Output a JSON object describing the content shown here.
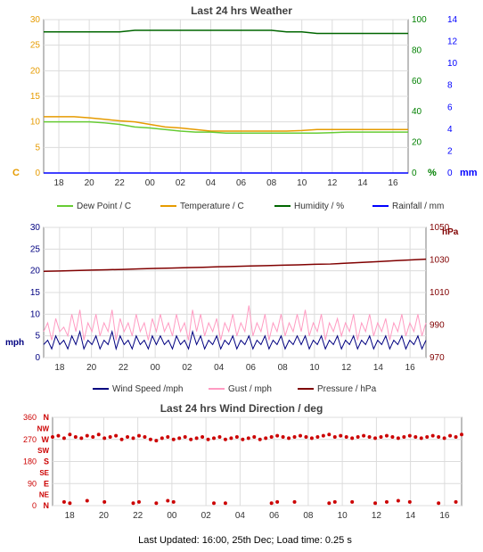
{
  "chart1": {
    "title": "Last 24 hrs Weather",
    "title_fontsize": 12,
    "background": "#ffffff",
    "plot_bg": "#ffffff",
    "grid_color": "#dcdcdc",
    "x": {
      "categories": [
        "18",
        "20",
        "22",
        "00",
        "02",
        "04",
        "06",
        "08",
        "10",
        "12",
        "14",
        "16"
      ],
      "tick_color": "#7c7c7c",
      "label_color": "#333333",
      "fontsize": 10
    },
    "y_left": {
      "label": "C",
      "color": "#e69b00",
      "min": 0,
      "max": 30,
      "step": 5,
      "fontsize": 10
    },
    "y_right1": {
      "label": "%",
      "color": "#008000",
      "min": 0,
      "max": 100,
      "step": 20,
      "fontsize": 10
    },
    "y_right2": {
      "label": "mm",
      "color": "#0000ff",
      "min": 0,
      "max": 14,
      "step": 2,
      "fontsize": 10
    },
    "series": {
      "dewpoint": {
        "name": "Dew Point / C",
        "color": "#66cc33",
        "width": 1.5,
        "data": [
          10,
          10,
          10,
          10,
          9.8,
          9.5,
          9,
          8.8,
          8.5,
          8.2,
          8,
          8,
          7.8,
          7.8,
          7.8,
          7.8,
          7.8,
          7.8,
          7.8,
          7.9,
          8,
          8,
          8,
          8,
          8
        ]
      },
      "temperature": {
        "name": "Temperature / C",
        "color": "#e69b00",
        "width": 1.5,
        "data": [
          11,
          11,
          11,
          10.8,
          10.5,
          10.2,
          10,
          9.5,
          9,
          8.8,
          8.5,
          8.2,
          8.2,
          8.2,
          8.2,
          8.2,
          8.2,
          8.3,
          8.5,
          8.5,
          8.5,
          8.5,
          8.5,
          8.5,
          8.5
        ]
      },
      "humidity": {
        "name": "Humidity / %",
        "color": "#006600",
        "width": 1.5,
        "data": [
          92,
          92,
          92,
          92,
          92,
          92,
          93,
          93,
          93,
          93,
          93,
          93,
          93,
          93,
          93,
          93,
          92,
          92,
          91,
          91,
          91,
          91,
          91,
          91,
          91
        ]
      },
      "rainfall": {
        "name": "Rainfall / mm",
        "color": "#0000ff",
        "width": 1.5,
        "data": [
          0,
          0,
          0,
          0,
          0,
          0,
          0,
          0,
          0,
          0,
          0,
          0,
          0,
          0,
          0,
          0,
          0,
          0,
          0,
          0,
          0,
          0,
          0,
          0,
          0
        ]
      }
    }
  },
  "chart2": {
    "background": "#ffffff",
    "grid_color": "#dcdcdc",
    "x": {
      "categories": [
        "18",
        "20",
        "22",
        "00",
        "02",
        "04",
        "06",
        "08",
        "10",
        "12",
        "14",
        "16"
      ],
      "tick_color": "#7c7c7c",
      "label_color": "#333333",
      "fontsize": 10
    },
    "y_left": {
      "label": "mph",
      "color": "#000080",
      "min": 0,
      "max": 30,
      "step": 5,
      "fontsize": 10
    },
    "y_right": {
      "label": "hPa",
      "color": "#800000",
      "min": 970,
      "max": 1050,
      "step": 20,
      "fontsize": 10
    },
    "series": {
      "windspeed": {
        "name": "Wind Speed /mph",
        "color": "#000080",
        "width": 1,
        "data": [
          3,
          4,
          2,
          5,
          3,
          4,
          2,
          5,
          3,
          6,
          2,
          4,
          3,
          5,
          2,
          4,
          3,
          6,
          2,
          5,
          3,
          4,
          2,
          5,
          3,
          4,
          2,
          5,
          3,
          5,
          3,
          4,
          2,
          5,
          3,
          4,
          2,
          6,
          3,
          5,
          2,
          4,
          3,
          5,
          2,
          4,
          3,
          5,
          2,
          4,
          3,
          5,
          2,
          4,
          3,
          5,
          2,
          4,
          3,
          5,
          2,
          4,
          3,
          5,
          3,
          5,
          2,
          4,
          3,
          5,
          2,
          4,
          3,
          5,
          2,
          4,
          3,
          5,
          2,
          4,
          3,
          5,
          2,
          4,
          3,
          5,
          2,
          4,
          3,
          5,
          2,
          4,
          3,
          5,
          2,
          4
        ]
      },
      "gust": {
        "name": "Gust / mph",
        "color": "#ff9bc2",
        "width": 1,
        "data": [
          6,
          8,
          4,
          9,
          6,
          7,
          5,
          10,
          6,
          11,
          4,
          8,
          6,
          10,
          5,
          8,
          6,
          11,
          4,
          9,
          6,
          8,
          5,
          10,
          6,
          8,
          4,
          9,
          6,
          10,
          6,
          8,
          5,
          10,
          6,
          8,
          4,
          11,
          6,
          10,
          5,
          8,
          6,
          9,
          4,
          8,
          6,
          10,
          5,
          8,
          6,
          12,
          5,
          8,
          6,
          10,
          4,
          8,
          6,
          10,
          5,
          8,
          6,
          10,
          6,
          11,
          5,
          8,
          6,
          10,
          4,
          8,
          6,
          9,
          5,
          8,
          6,
          10,
          4,
          8,
          6,
          10,
          5,
          8,
          6,
          9,
          4,
          8,
          6,
          10,
          5,
          8,
          6,
          10,
          5,
          8
        ]
      },
      "pressure": {
        "name": "Pressure / hPa",
        "color": "#800000",
        "width": 1.5,
        "data": [
          1023,
          1023.2,
          1023.5,
          1023.8,
          1024,
          1024.2,
          1024.5,
          1024.8,
          1025,
          1025.3,
          1025.5,
          1025.8,
          1026,
          1026.3,
          1026.5,
          1026.8,
          1027,
          1027.3,
          1027.5,
          1028,
          1028.5,
          1029,
          1029.5,
          1030,
          1030.5
        ]
      }
    }
  },
  "chart3": {
    "title": "Last 24 hrs Wind Direction / deg",
    "title_fontsize": 12,
    "background": "#ffffff",
    "grid_color": "#dcdcdc",
    "x": {
      "categories": [
        "18",
        "20",
        "22",
        "00",
        "02",
        "04",
        "06",
        "08",
        "10",
        "12",
        "14",
        "16"
      ],
      "tick_color": "#7c7c7c",
      "label_color": "#333333",
      "fontsize": 10
    },
    "y_left": {
      "color": "#cc0000",
      "ticks": [
        0,
        90,
        180,
        270,
        360
      ],
      "tick_labels": [
        "N",
        "E",
        "S",
        "W",
        "N"
      ],
      "minor_labels": [
        "NE",
        "SE",
        "SW",
        "NW"
      ],
      "fontsize": 9
    },
    "series": {
      "direction": {
        "color": "#cc0000",
        "marker_size": 2,
        "data": [
          280,
          285,
          275,
          290,
          280,
          275,
          285,
          280,
          290,
          275,
          280,
          285,
          270,
          280,
          275,
          285,
          280,
          270,
          265,
          275,
          280,
          270,
          275,
          280,
          270,
          275,
          280,
          270,
          275,
          280,
          270,
          275,
          280,
          270,
          275,
          280,
          270,
          275,
          280,
          285,
          280,
          275,
          280,
          285,
          280,
          275,
          280,
          285,
          290,
          280,
          285,
          280,
          275,
          280,
          285,
          280,
          275,
          280,
          285,
          280,
          275,
          280,
          285,
          280,
          275,
          280,
          285,
          280,
          275,
          285,
          280,
          290
        ]
      },
      "direction_low": {
        "color": "#cc0000",
        "marker_size": 2,
        "data_sparse": [
          [
            2,
            15
          ],
          [
            3,
            10
          ],
          [
            6,
            20
          ],
          [
            9,
            15
          ],
          [
            14,
            10
          ],
          [
            15,
            15
          ],
          [
            18,
            10
          ],
          [
            20,
            20
          ],
          [
            21,
            15
          ],
          [
            28,
            10
          ],
          [
            30,
            10
          ],
          [
            38,
            10
          ],
          [
            39,
            15
          ],
          [
            42,
            15
          ],
          [
            48,
            10
          ],
          [
            49,
            15
          ],
          [
            52,
            15
          ],
          [
            56,
            10
          ],
          [
            58,
            15
          ],
          [
            60,
            20
          ],
          [
            62,
            15
          ],
          [
            67,
            10
          ],
          [
            70,
            15
          ]
        ]
      }
    }
  },
  "footer": {
    "text": "Last Updated: 16:00, 25th Dec; Load time: 0.25 s"
  }
}
